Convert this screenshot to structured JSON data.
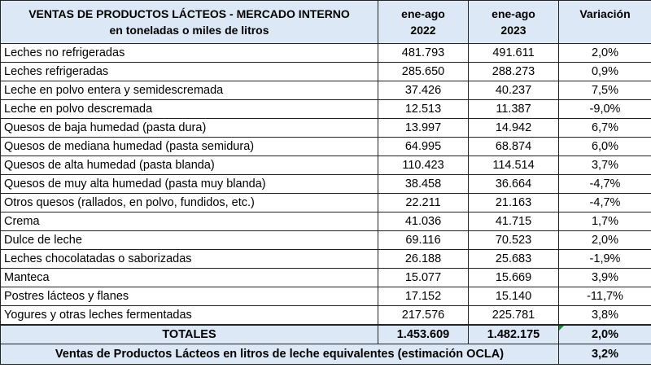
{
  "header": {
    "title_line1": "VENTAS DE PRODUCTOS LÁCTEOS - MERCADO INTERNO",
    "title_line2": "en toneladas o miles de litros",
    "col1_line1": "ene-ago",
    "col1_line2": "2022",
    "col2_line1": "ene-ago",
    "col2_line2": "2023",
    "col3": "Variación"
  },
  "rows": [
    {
      "name": "Leches no refrigeradas",
      "v2022": "481.793",
      "v2023": "491.611",
      "var": "2,0%"
    },
    {
      "name": "Leches refrigeradas",
      "v2022": "285.650",
      "v2023": "288.273",
      "var": "0,9%"
    },
    {
      "name": "Leche en polvo entera y semidescremada",
      "v2022": "37.426",
      "v2023": "40.237",
      "var": "7,5%"
    },
    {
      "name": "Leche en polvo descremada",
      "v2022": "12.513",
      "v2023": "11.387",
      "var": "-9,0%"
    },
    {
      "name": "Quesos de baja humedad (pasta dura)",
      "v2022": "13.997",
      "v2023": "14.942",
      "var": "6,7%"
    },
    {
      "name": "Quesos de mediana humedad (pasta semidura)",
      "v2022": "64.995",
      "v2023": "68.874",
      "var": "6,0%"
    },
    {
      "name": "Quesos de alta humedad (pasta blanda)",
      "v2022": "110.423",
      "v2023": "114.514",
      "var": "3,7%"
    },
    {
      "name": "Quesos de muy alta humedad (pasta muy blanda)",
      "v2022": "38.458",
      "v2023": "36.664",
      "var": "-4,7%"
    },
    {
      "name": "Otros quesos (rallados, en polvo, fundidos, etc.)",
      "v2022": "22.211",
      "v2023": "21.163",
      "var": "-4,7%"
    },
    {
      "name": "Crema",
      "v2022": "41.036",
      "v2023": "41.715",
      "var": "1,7%"
    },
    {
      "name": "Dulce de leche",
      "v2022": "69.116",
      "v2023": "70.523",
      "var": "2,0%"
    },
    {
      "name": "Leches chocolatadas o saborizadas",
      "v2022": "26.188",
      "v2023": "25.683",
      "var": "-1,9%"
    },
    {
      "name": "Manteca",
      "v2022": "15.077",
      "v2023": "15.669",
      "var": "3,9%"
    },
    {
      "name": "Postres lácteos y flanes",
      "v2022": "17.152",
      "v2023": "15.140",
      "var": "-11,7%"
    },
    {
      "name": "Yogures y otras leches fermentadas",
      "v2022": "217.576",
      "v2023": "225.781",
      "var": "3,8%"
    }
  ],
  "totals": {
    "label": "TOTALES",
    "v2022": "1.453.609",
    "v2023": "1.482.175",
    "var": "2,0%"
  },
  "ocla": {
    "label": "Ventas de Productos Lácteos en litros de leche equivalentes (estimación OCLA)",
    "var": "3,2%"
  }
}
